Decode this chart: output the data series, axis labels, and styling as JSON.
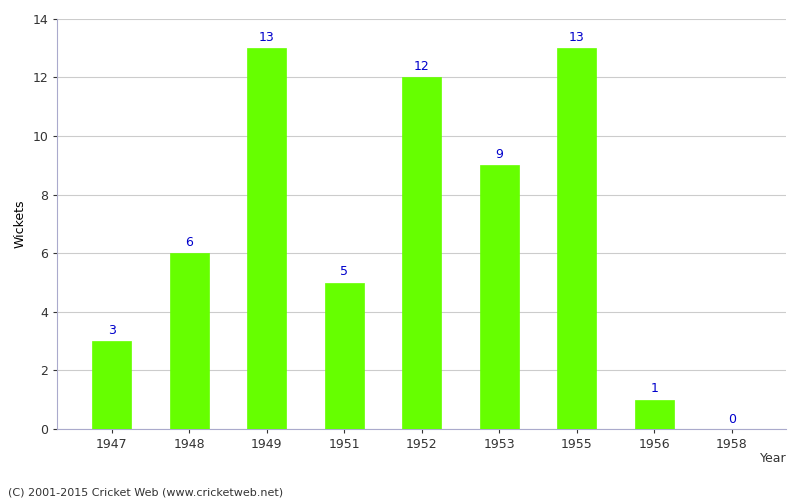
{
  "years": [
    "1947",
    "1948",
    "1949",
    "1951",
    "1952",
    "1953",
    "1955",
    "1956",
    "1958"
  ],
  "values": [
    3,
    6,
    13,
    5,
    12,
    9,
    13,
    1,
    0
  ],
  "bar_color": "#66ff00",
  "bar_edge_color": "#66ff00",
  "label_color": "#0000cc",
  "xlabel": "Year",
  "ylabel": "Wickets",
  "ylim": [
    0,
    14
  ],
  "yticks": [
    0,
    2,
    4,
    6,
    8,
    10,
    12,
    14
  ],
  "label_fontsize": 9,
  "axis_label_fontsize": 9,
  "tick_fontsize": 9,
  "footer": "(C) 2001-2015 Cricket Web (www.cricketweb.net)",
  "background_color": "#ffffff",
  "grid_color": "#cccccc",
  "spine_color": "#aaaacc",
  "bar_width": 0.5
}
